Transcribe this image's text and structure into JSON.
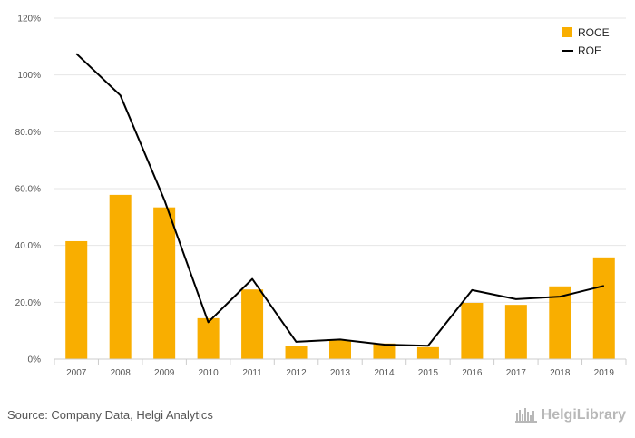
{
  "chart_data": {
    "type": "bar",
    "categories": [
      "2007",
      "2008",
      "2009",
      "2010",
      "2011",
      "2012",
      "2013",
      "2014",
      "2015",
      "2016",
      "2017",
      "2018",
      "2019"
    ],
    "series": [
      {
        "name": "ROCE",
        "kind": "bar",
        "color": "#F9AE00",
        "values": [
          41.5,
          57.8,
          53.4,
          14.4,
          24.5,
          4.6,
          6.6,
          5.5,
          4.2,
          19.8,
          19.1,
          25.6,
          35.8
        ]
      },
      {
        "name": "ROE",
        "kind": "line",
        "color": "#000000",
        "values": [
          107.5,
          92.8,
          56.0,
          13.0,
          28.2,
          6.1,
          6.9,
          5.1,
          4.7,
          24.3,
          21.1,
          22.0,
          25.8
        ]
      }
    ],
    "ylim": [
      0,
      120
    ],
    "yticks": [
      0,
      20,
      40,
      60,
      80,
      100,
      120
    ],
    "ytick_labels": [
      "0%",
      "20.0%",
      "40.0%",
      "60.0%",
      "80.0%",
      "100%",
      "120%"
    ],
    "grid": true,
    "legend_position": "top-right"
  },
  "footer": {
    "source": "Source: Company Data, Helgi Analytics",
    "logo_text": "HelgiLibrary"
  }
}
